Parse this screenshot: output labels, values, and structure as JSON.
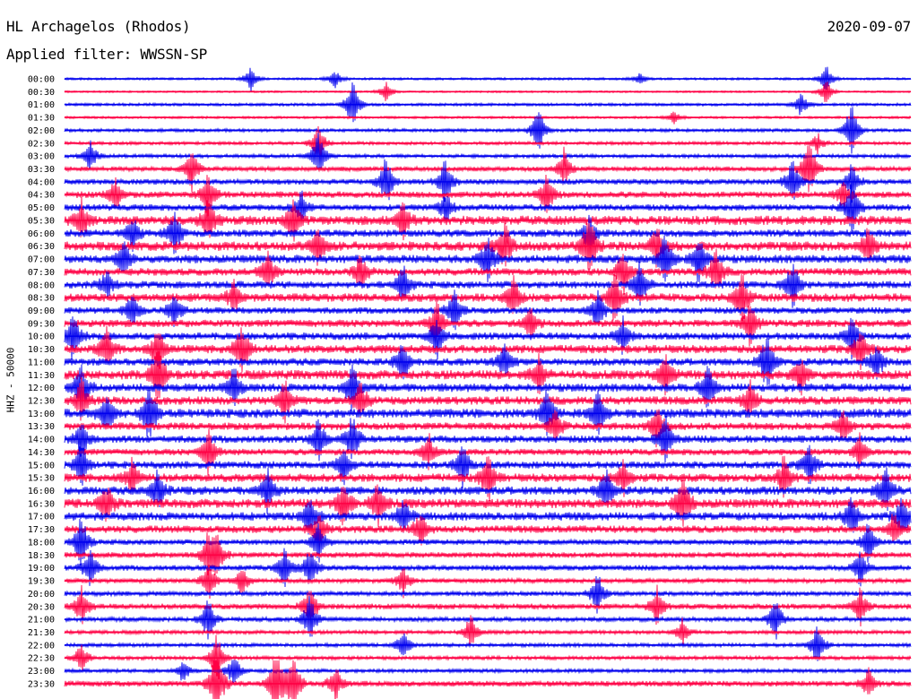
{
  "header": {
    "station": "HL Archagelos (Rhodos)",
    "date": "2020-09-07",
    "filter": "Applied filter: WWSSN-SP"
  },
  "chart_data": {
    "type": "line",
    "title": "HL Archagelos (Rhodos)",
    "subtitle": "Applied filter: WWSSN-SP",
    "ylabel": "HHZ - 50000",
    "xlabel": "",
    "grid": false,
    "series_colors": [
      "#0000ee",
      "#ff0044"
    ],
    "rows": [
      {
        "label": "00:00",
        "amp": 0.25,
        "events": [
          [
            0.22,
            0.7
          ],
          [
            0.32,
            0.6
          ],
          [
            0.68,
            0.4
          ],
          [
            0.9,
            0.9
          ]
        ]
      },
      {
        "label": "00:30",
        "amp": 0.2,
        "events": [
          [
            0.38,
            0.6
          ],
          [
            0.9,
            0.8
          ]
        ]
      },
      {
        "label": "01:00",
        "amp": 0.3,
        "events": [
          [
            0.34,
            1.6
          ],
          [
            0.87,
            0.8
          ]
        ]
      },
      {
        "label": "01:30",
        "amp": 0.25,
        "events": [
          [
            0.72,
            0.4
          ]
        ]
      },
      {
        "label": "02:00",
        "amp": 0.35,
        "events": [
          [
            0.56,
            1.6
          ],
          [
            0.93,
            2.0
          ]
        ]
      },
      {
        "label": "02:30",
        "amp": 0.35,
        "events": [
          [
            0.3,
            1.2
          ],
          [
            0.89,
            0.6
          ]
        ]
      },
      {
        "label": "03:00",
        "amp": 0.4,
        "events": [
          [
            0.03,
            1.0
          ],
          [
            0.3,
            1.6
          ]
        ]
      },
      {
        "label": "03:30",
        "amp": 0.5,
        "events": [
          [
            0.15,
            1.4
          ],
          [
            0.59,
            1.2
          ],
          [
            0.88,
            2.2
          ]
        ]
      },
      {
        "label": "04:00",
        "amp": 0.6,
        "events": [
          [
            0.38,
            1.8
          ],
          [
            0.45,
            1.5
          ],
          [
            0.86,
            1.6
          ],
          [
            0.93,
            1.2
          ]
        ]
      },
      {
        "label": "04:30",
        "amp": 0.7,
        "events": [
          [
            0.06,
            1.0
          ],
          [
            0.17,
            1.5
          ],
          [
            0.57,
            1.4
          ],
          [
            0.92,
            1.0
          ]
        ]
      },
      {
        "label": "05:00",
        "amp": 0.7,
        "events": [
          [
            0.28,
            1.0
          ],
          [
            0.45,
            1.0
          ],
          [
            0.93,
            1.8
          ]
        ]
      },
      {
        "label": "05:30",
        "amp": 1.0,
        "events": [
          [
            0.02,
            1.3
          ],
          [
            0.17,
            1.5
          ],
          [
            0.27,
            1.6
          ],
          [
            0.4,
            1.2
          ]
        ]
      },
      {
        "label": "06:00",
        "amp": 0.8,
        "events": [
          [
            0.08,
            1.1
          ],
          [
            0.13,
            1.4
          ],
          [
            0.62,
            1.2
          ]
        ]
      },
      {
        "label": "06:30",
        "amp": 1.0,
        "events": [
          [
            0.3,
            1.4
          ],
          [
            0.52,
            1.6
          ],
          [
            0.62,
            2.6
          ],
          [
            0.7,
            1.3
          ],
          [
            0.95,
            1.2
          ]
        ]
      },
      {
        "label": "07:00",
        "amp": 0.9,
        "events": [
          [
            0.07,
            1.2
          ],
          [
            0.5,
            1.6
          ],
          [
            0.71,
            1.8
          ],
          [
            0.75,
            1.8
          ]
        ]
      },
      {
        "label": "07:30",
        "amp": 0.8,
        "events": [
          [
            0.24,
            1.4
          ],
          [
            0.35,
            1.2
          ],
          [
            0.66,
            1.6
          ],
          [
            0.77,
            1.8
          ]
        ]
      },
      {
        "label": "08:00",
        "amp": 0.8,
        "events": [
          [
            0.05,
            1.0
          ],
          [
            0.4,
            1.4
          ],
          [
            0.68,
            1.4
          ],
          [
            0.86,
            1.8
          ]
        ]
      },
      {
        "label": "08:30",
        "amp": 0.9,
        "events": [
          [
            0.2,
            1.0
          ],
          [
            0.53,
            1.6
          ],
          [
            0.65,
            1.6
          ],
          [
            0.8,
            1.8
          ]
        ]
      },
      {
        "label": "09:00",
        "amp": 0.7,
        "events": [
          [
            0.08,
            1.3
          ],
          [
            0.13,
            1.2
          ],
          [
            0.46,
            1.5
          ],
          [
            0.63,
            1.4
          ]
        ]
      },
      {
        "label": "09:30",
        "amp": 0.8,
        "events": [
          [
            0.44,
            1.5
          ],
          [
            0.55,
            1.2
          ],
          [
            0.81,
            1.4
          ]
        ]
      },
      {
        "label": "10:00",
        "amp": 0.8,
        "events": [
          [
            0.01,
            1.6
          ],
          [
            0.44,
            1.4
          ],
          [
            0.66,
            1.3
          ],
          [
            0.93,
            1.4
          ]
        ]
      },
      {
        "label": "10:30",
        "amp": 0.9,
        "events": [
          [
            0.05,
            1.4
          ],
          [
            0.11,
            1.6
          ],
          [
            0.21,
            1.8
          ],
          [
            0.94,
            1.3
          ]
        ]
      },
      {
        "label": "11:00",
        "amp": 0.8,
        "events": [
          [
            0.4,
            1.4
          ],
          [
            0.52,
            1.2
          ],
          [
            0.83,
            2.2
          ],
          [
            0.96,
            1.2
          ]
        ]
      },
      {
        "label": "11:30",
        "amp": 1.0,
        "events": [
          [
            0.11,
            2.2
          ],
          [
            0.56,
            1.2
          ],
          [
            0.71,
            1.4
          ],
          [
            0.87,
            1.2
          ]
        ]
      },
      {
        "label": "12:00",
        "amp": 0.9,
        "events": [
          [
            0.02,
            1.6
          ],
          [
            0.2,
            1.4
          ],
          [
            0.34,
            1.6
          ],
          [
            0.76,
            1.4
          ]
        ]
      },
      {
        "label": "12:30",
        "amp": 0.9,
        "events": [
          [
            0.02,
            1.4
          ],
          [
            0.26,
            1.4
          ],
          [
            0.35,
            1.2
          ],
          [
            0.81,
            1.3
          ]
        ]
      },
      {
        "label": "13:00",
        "amp": 1.0,
        "events": [
          [
            0.05,
            1.4
          ],
          [
            0.1,
            2.2
          ],
          [
            0.57,
            1.6
          ],
          [
            0.63,
            1.8
          ]
        ]
      },
      {
        "label": "13:30",
        "amp": 0.8,
        "events": [
          [
            0.58,
            1.2
          ],
          [
            0.7,
            1.3
          ],
          [
            0.92,
            1.2
          ]
        ]
      },
      {
        "label": "14:00",
        "amp": 0.8,
        "events": [
          [
            0.02,
            1.2
          ],
          [
            0.3,
            1.4
          ],
          [
            0.34,
            1.6
          ],
          [
            0.71,
            1.6
          ]
        ]
      },
      {
        "label": "14:30",
        "amp": 0.7,
        "events": [
          [
            0.17,
            1.6
          ],
          [
            0.43,
            1.2
          ],
          [
            0.94,
            1.2
          ]
        ]
      },
      {
        "label": "15:00",
        "amp": 0.8,
        "events": [
          [
            0.02,
            1.4
          ],
          [
            0.33,
            1.2
          ],
          [
            0.47,
            1.6
          ],
          [
            0.88,
            1.4
          ]
        ]
      },
      {
        "label": "15:30",
        "amp": 0.9,
        "events": [
          [
            0.08,
            1.2
          ],
          [
            0.5,
            1.8
          ],
          [
            0.66,
            1.2
          ],
          [
            0.85,
            1.4
          ]
        ]
      },
      {
        "label": "16:00",
        "amp": 0.9,
        "events": [
          [
            0.11,
            1.4
          ],
          [
            0.24,
            1.4
          ],
          [
            0.64,
            1.4
          ],
          [
            0.97,
            1.6
          ]
        ]
      },
      {
        "label": "16:30",
        "amp": 1.0,
        "events": [
          [
            0.05,
            1.2
          ],
          [
            0.33,
            1.6
          ],
          [
            0.37,
            1.6
          ],
          [
            0.73,
            2.0
          ]
        ]
      },
      {
        "label": "17:00",
        "amp": 0.9,
        "events": [
          [
            0.29,
            1.4
          ],
          [
            0.4,
            1.2
          ],
          [
            0.93,
            1.4
          ],
          [
            0.99,
            1.4
          ]
        ]
      },
      {
        "label": "17:30",
        "amp": 0.8,
        "events": [
          [
            0.3,
            1.2
          ],
          [
            0.42,
            1.2
          ],
          [
            0.98,
            1.2
          ]
        ]
      },
      {
        "label": "18:00",
        "amp": 0.6,
        "events": [
          [
            0.02,
            2.0
          ],
          [
            0.3,
            1.2
          ],
          [
            0.95,
            1.3
          ]
        ]
      },
      {
        "label": "18:30",
        "amp": 0.6,
        "events": [
          [
            0.17,
            1.6
          ],
          [
            0.18,
            1.4
          ]
        ]
      },
      {
        "label": "19:00",
        "amp": 0.6,
        "events": [
          [
            0.03,
            1.4
          ],
          [
            0.26,
            1.4
          ],
          [
            0.29,
            1.4
          ],
          [
            0.94,
            1.2
          ]
        ]
      },
      {
        "label": "19:30",
        "amp": 0.5,
        "events": [
          [
            0.17,
            1.4
          ],
          [
            0.21,
            1.0
          ],
          [
            0.4,
            1.0
          ]
        ]
      },
      {
        "label": "20:00",
        "amp": 0.5,
        "events": [
          [
            0.63,
            1.4
          ]
        ]
      },
      {
        "label": "20:30",
        "amp": 0.6,
        "events": [
          [
            0.02,
            1.2
          ],
          [
            0.29,
            1.6
          ],
          [
            0.7,
            1.2
          ],
          [
            0.94,
            1.2
          ]
        ]
      },
      {
        "label": "21:00",
        "amp": 0.5,
        "events": [
          [
            0.17,
            1.4
          ],
          [
            0.29,
            1.6
          ],
          [
            0.84,
            1.4
          ]
        ]
      },
      {
        "label": "21:30",
        "amp": 0.4,
        "events": [
          [
            0.48,
            1.2
          ],
          [
            0.73,
            0.8
          ]
        ]
      },
      {
        "label": "22:00",
        "amp": 0.4,
        "events": [
          [
            0.4,
            1.0
          ],
          [
            0.89,
            1.6
          ]
        ]
      },
      {
        "label": "22:30",
        "amp": 0.4,
        "events": [
          [
            0.18,
            1.8
          ],
          [
            0.02,
            1.0
          ]
        ]
      },
      {
        "label": "23:00",
        "amp": 0.4,
        "events": [
          [
            0.14,
            0.8
          ],
          [
            0.2,
            1.2
          ]
        ]
      },
      {
        "label": "23:30",
        "amp": 0.6,
        "events": [
          [
            0.18,
            2.8
          ],
          [
            0.25,
            2.4
          ],
          [
            0.27,
            2.2
          ],
          [
            0.32,
            1.2
          ],
          [
            0.95,
            1.0
          ]
        ]
      }
    ]
  }
}
